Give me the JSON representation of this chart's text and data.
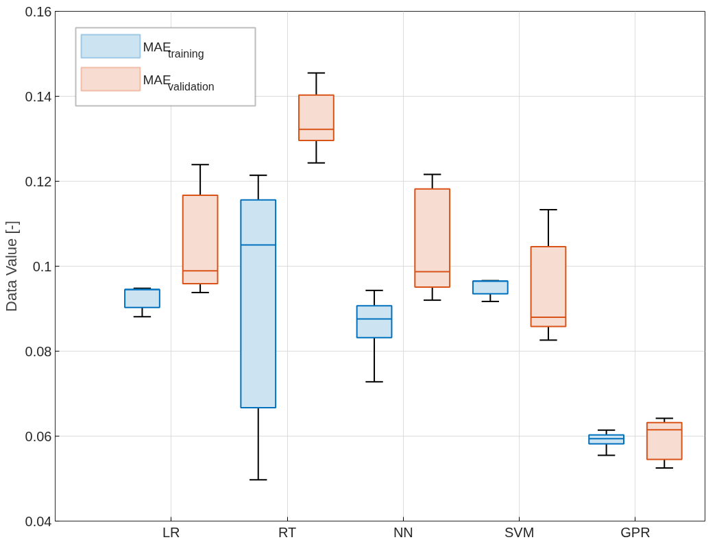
{
  "chart_data": {
    "type": "box",
    "ylabel": "Data Value [-]",
    "categories": [
      "LR",
      "RT",
      "NN",
      "SVM",
      "GPR"
    ],
    "ylim": [
      0.04,
      0.16
    ],
    "yticks": [
      0.04,
      0.06,
      0.08,
      0.1,
      0.12,
      0.14,
      0.16
    ],
    "grid": true,
    "legend": "top left",
    "series": [
      {
        "name": "MAE$_{training}$",
        "color": "#0072bd",
        "boxes": [
          {
            "low": 0.0881,
            "q1": 0.0903,
            "median": 0.0945,
            "q3": 0.0945,
            "high": 0.0948
          },
          {
            "low": 0.0497,
            "q1": 0.0667,
            "median": 0.105,
            "q3": 0.1156,
            "high": 0.1214
          },
          {
            "low": 0.0728,
            "q1": 0.0832,
            "median": 0.0876,
            "q3": 0.0907,
            "high": 0.0943
          },
          {
            "low": 0.0917,
            "q1": 0.0935,
            "median": 0.0965,
            "q3": 0.0965,
            "high": 0.0966
          },
          {
            "low": 0.0555,
            "q1": 0.0582,
            "median": 0.0594,
            "q3": 0.0603,
            "high": 0.0614
          }
        ]
      },
      {
        "name": "MAE$_{validation}$",
        "color": "#d95319",
        "boxes": [
          {
            "low": 0.0938,
            "q1": 0.0959,
            "median": 0.0989,
            "q3": 0.1167,
            "high": 0.1239
          },
          {
            "low": 0.1243,
            "q1": 0.1296,
            "median": 0.1322,
            "q3": 0.1403,
            "high": 0.1455
          },
          {
            "low": 0.092,
            "q1": 0.0951,
            "median": 0.0987,
            "q3": 0.1182,
            "high": 0.1216
          },
          {
            "low": 0.0826,
            "q1": 0.0858,
            "median": 0.088,
            "q3": 0.1046,
            "high": 0.1133
          },
          {
            "low": 0.0525,
            "q1": 0.0545,
            "median": 0.0615,
            "q3": 0.0632,
            "high": 0.0642
          }
        ]
      }
    ]
  }
}
